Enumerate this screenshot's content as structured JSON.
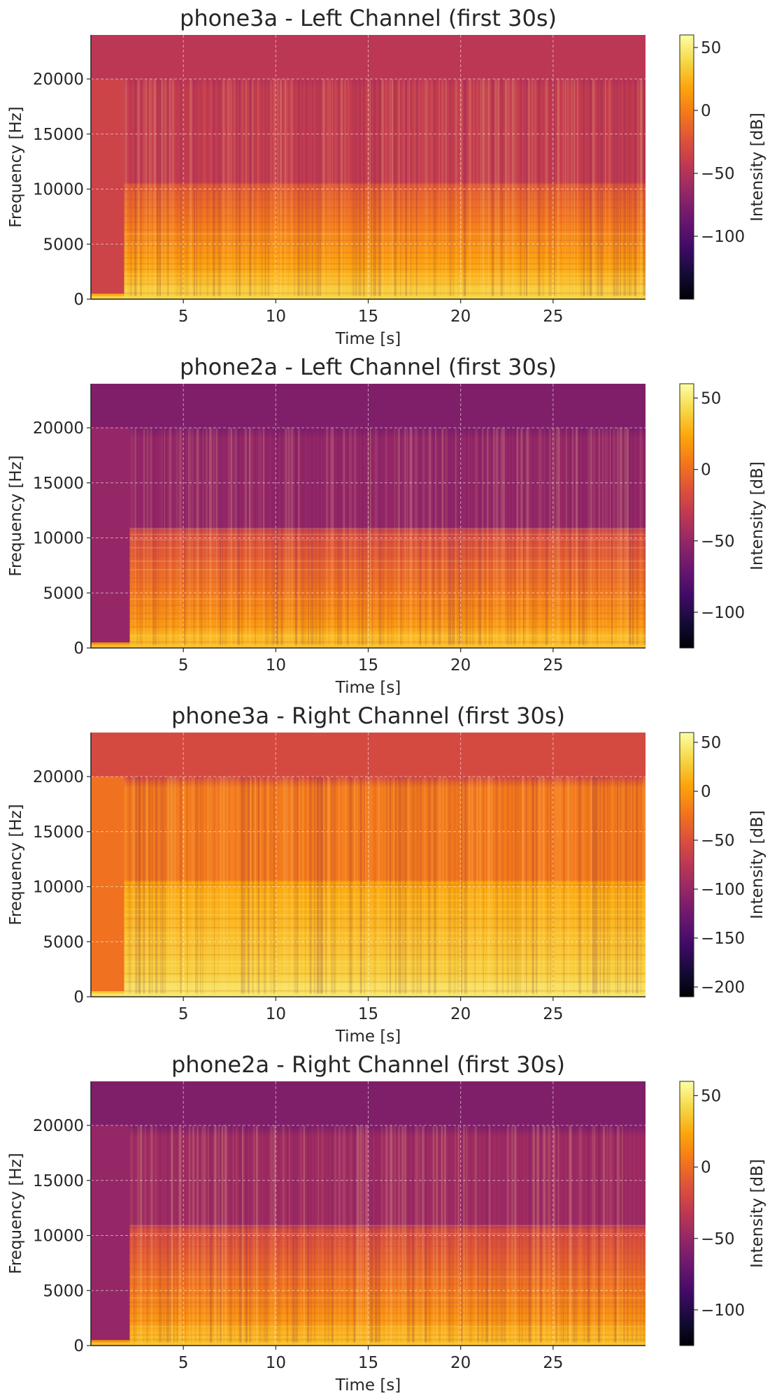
{
  "chart_data": [
    {
      "type": "heatmap",
      "title": "phone3a - Left Channel (first 30s)",
      "xlabel": "Time [s]",
      "ylabel": "Frequency [Hz]",
      "xlim": [
        0,
        30
      ],
      "ylim": [
        0,
        24000
      ],
      "xticks": [
        5,
        10,
        15,
        20,
        25
      ],
      "yticks": [
        0,
        5000,
        10000,
        15000,
        20000
      ],
      "grid": true,
      "colormap": "inferno",
      "colorbar": {
        "label": "Intensity [dB]",
        "range": [
          -150,
          60
        ],
        "ticks": [
          50,
          0,
          -50,
          -100
        ]
      },
      "tick_labels": {
        "x": [
          "5",
          "10",
          "15",
          "20",
          "25"
        ],
        "y": [
          "0",
          "5000",
          "10000",
          "15000",
          "20000"
        ],
        "colorbar": [
          "50",
          "0",
          "−50",
          "−100"
        ]
      },
      "features": {
        "onset_s": 1.8,
        "band_edge_hz": 10500,
        "cutoff_hz": 20000,
        "level_low_db": 25,
        "level_mid_db": -20,
        "level_high_db": -40,
        "level_above_cutoff_db": -45,
        "level_pre_onset_db": -35
      }
    },
    {
      "type": "heatmap",
      "title": "phone2a - Left Channel (first 30s)",
      "xlabel": "Time [s]",
      "ylabel": "Frequency [Hz]",
      "xlim": [
        0,
        30
      ],
      "ylim": [
        0,
        24000
      ],
      "xticks": [
        5,
        10,
        15,
        20,
        25
      ],
      "yticks": [
        0,
        5000,
        10000,
        15000,
        20000
      ],
      "grid": true,
      "colormap": "inferno",
      "colorbar": {
        "label": "Intensity [dB]",
        "range": [
          -125,
          60
        ],
        "ticks": [
          50,
          0,
          -50,
          -100
        ]
      },
      "tick_labels": {
        "x": [
          "5",
          "10",
          "15",
          "20",
          "25"
        ],
        "y": [
          "0",
          "5000",
          "10000",
          "15000",
          "20000"
        ],
        "colorbar": [
          "50",
          "0",
          "−50",
          "−100"
        ]
      },
      "features": {
        "onset_s": 2.1,
        "band_edge_hz": 11000,
        "cutoff_hz": 20000,
        "level_low_db": 20,
        "level_mid_db": -20,
        "level_high_db": -50,
        "level_above_cutoff_db": -60,
        "level_pre_onset_db": -50
      }
    },
    {
      "type": "heatmap",
      "title": "phone3a - Right Channel (first 30s)",
      "xlabel": "Time [s]",
      "ylabel": "Frequency [Hz]",
      "xlim": [
        0,
        30
      ],
      "ylim": [
        0,
        24000
      ],
      "xticks": [
        5,
        10,
        15,
        20,
        25
      ],
      "yticks": [
        0,
        5000,
        10000,
        15000,
        20000
      ],
      "grid": true,
      "colormap": "inferno",
      "colorbar": {
        "label": "Intensity [dB]",
        "range": [
          -210,
          60
        ],
        "ticks": [
          50,
          0,
          -50,
          -100,
          -150,
          -200
        ]
      },
      "tick_labels": {
        "x": [
          "5",
          "10",
          "15",
          "20",
          "25"
        ],
        "y": [
          "0",
          "5000",
          "10000",
          "15000",
          "20000"
        ],
        "colorbar": [
          "50",
          "0",
          "−50",
          "−100",
          "−150",
          "−200"
        ]
      },
      "features": {
        "onset_s": 1.8,
        "band_edge_hz": 10500,
        "cutoff_hz": 20000,
        "level_low_db": 30,
        "level_mid_db": 5,
        "level_high_db": -20,
        "level_above_cutoff_db": -55,
        "level_pre_onset_db": -25
      }
    },
    {
      "type": "heatmap",
      "title": "phone2a - Right Channel (first 30s)",
      "xlabel": "Time [s]",
      "ylabel": "Frequency [Hz]",
      "xlim": [
        0,
        30
      ],
      "ylim": [
        0,
        24000
      ],
      "xticks": [
        5,
        10,
        15,
        20,
        25
      ],
      "yticks": [
        0,
        5000,
        10000,
        15000,
        20000
      ],
      "grid": true,
      "colormap": "inferno",
      "colorbar": {
        "label": "Intensity [dB]",
        "range": [
          -125,
          60
        ],
        "ticks": [
          50,
          0,
          -50,
          -100
        ]
      },
      "tick_labels": {
        "x": [
          "5",
          "10",
          "15",
          "20",
          "25"
        ],
        "y": [
          "0",
          "5000",
          "10000",
          "15000",
          "20000"
        ],
        "colorbar": [
          "50",
          "0",
          "−50",
          "−100"
        ]
      },
      "features": {
        "onset_s": 2.1,
        "band_edge_hz": 11000,
        "cutoff_hz": 20000,
        "level_low_db": 20,
        "level_mid_db": -20,
        "level_high_db": -45,
        "level_above_cutoff_db": -60,
        "level_pre_onset_db": -50
      }
    }
  ]
}
